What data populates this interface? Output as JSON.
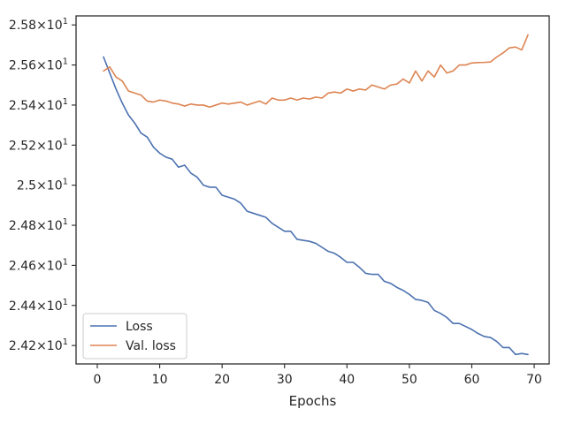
{
  "chart_data": {
    "type": "line",
    "title": "",
    "xlabel": "Epochs",
    "ylabel": "",
    "xlim": [
      -3.4,
      72.4
    ],
    "ylim": [
      24.108,
      25.845
    ],
    "x_ticks": [
      0,
      10,
      20,
      30,
      40,
      50,
      60,
      70
    ],
    "x_tick_labels": [
      "0",
      "10",
      "20",
      "30",
      "40",
      "50",
      "60",
      "70"
    ],
    "y_ticks": [
      24.2,
      24.4,
      24.6,
      24.8,
      25.0,
      25.2,
      25.4,
      25.6,
      25.8
    ],
    "y_tick_labels": [
      {
        "base": "2.42",
        "exp": "1"
      },
      {
        "base": "2.44",
        "exp": "1"
      },
      {
        "base": "2.46",
        "exp": "1"
      },
      {
        "base": "2.48",
        "exp": "1"
      },
      {
        "base": "2.5",
        "exp": "1"
      },
      {
        "base": "2.52",
        "exp": "1"
      },
      {
        "base": "2.54",
        "exp": "1"
      },
      {
        "base": "2.56",
        "exp": "1"
      },
      {
        "base": "2.58",
        "exp": "1"
      }
    ],
    "y_tick_times": "×10",
    "grid": false,
    "legend_position": "lower-left",
    "x": [
      1,
      2,
      3,
      4,
      5,
      6,
      7,
      8,
      9,
      10,
      11,
      12,
      13,
      14,
      15,
      16,
      17,
      18,
      19,
      20,
      21,
      22,
      23,
      24,
      25,
      26,
      27,
      28,
      29,
      30,
      31,
      32,
      33,
      34,
      35,
      36,
      37,
      38,
      39,
      40,
      41,
      42,
      43,
      44,
      45,
      46,
      47,
      48,
      49,
      50,
      51,
      52,
      53,
      54,
      55,
      56,
      57,
      58,
      59,
      60,
      61,
      62,
      63,
      64,
      65,
      66,
      67,
      68,
      69
    ],
    "series": [
      {
        "name": "Loss",
        "color": "#4c72b0",
        "values": [
          25.64,
          25.56,
          25.48,
          25.41,
          25.35,
          25.31,
          25.26,
          25.24,
          25.19,
          25.16,
          25.14,
          25.13,
          25.09,
          25.1,
          25.06,
          25.04,
          25.0,
          24.99,
          24.99,
          24.95,
          24.94,
          24.93,
          24.91,
          24.87,
          24.86,
          24.85,
          24.84,
          24.81,
          24.79,
          24.77,
          24.77,
          24.73,
          24.725,
          24.72,
          24.71,
          24.69,
          24.67,
          24.66,
          24.64,
          24.615,
          24.615,
          24.59,
          24.56,
          24.555,
          24.555,
          24.52,
          24.51,
          24.49,
          24.475,
          24.455,
          24.43,
          24.425,
          24.415,
          24.375,
          24.36,
          24.34,
          24.31,
          24.31,
          24.295,
          24.28,
          24.26,
          24.245,
          24.24,
          24.22,
          24.19,
          24.19,
          24.155,
          24.16,
          24.155
        ]
      },
      {
        "name": "Val. loss",
        "color": "#dd8452",
        "values": [
          25.57,
          25.59,
          25.54,
          25.52,
          25.47,
          25.46,
          25.45,
          25.42,
          25.415,
          25.425,
          25.42,
          25.41,
          25.405,
          25.395,
          25.405,
          25.4,
          25.4,
          25.39,
          25.4,
          25.41,
          25.405,
          25.41,
          25.415,
          25.4,
          25.41,
          25.42,
          25.405,
          25.435,
          25.425,
          25.425,
          25.435,
          25.425,
          25.435,
          25.43,
          25.44,
          25.435,
          25.46,
          25.465,
          25.46,
          25.48,
          25.47,
          25.48,
          25.475,
          25.5,
          25.49,
          25.48,
          25.5,
          25.505,
          25.53,
          25.51,
          25.57,
          25.52,
          25.57,
          25.54,
          25.6,
          25.56,
          25.57,
          25.6,
          25.6,
          25.61,
          25.612,
          25.613,
          25.615,
          25.64,
          25.66,
          25.685,
          25.69,
          25.675,
          25.75
        ]
      }
    ]
  }
}
